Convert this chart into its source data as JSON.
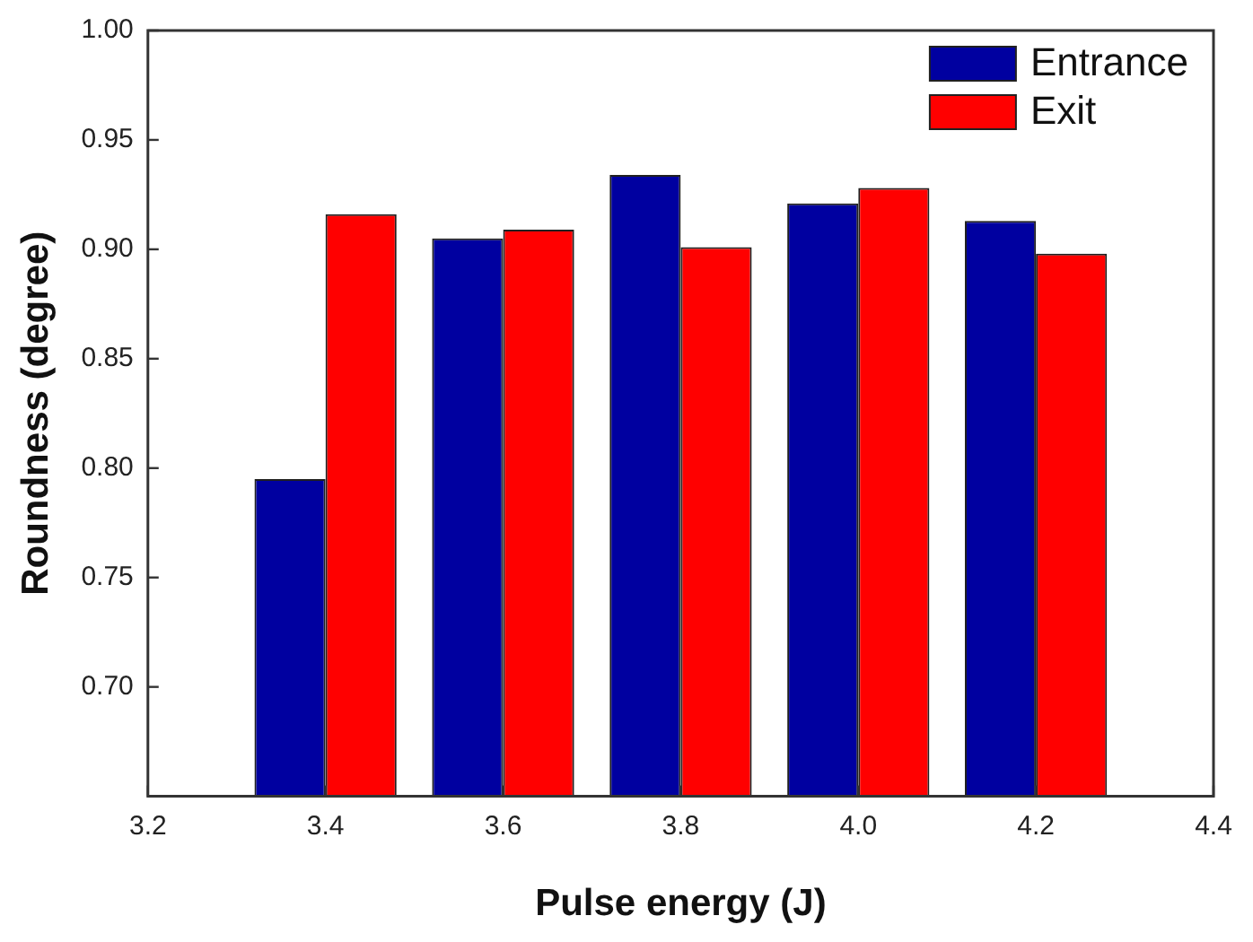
{
  "chart_data": {
    "type": "bar",
    "xlabel": "Pulse energy (J)",
    "ylabel": "Roundness (degree)",
    "x": [
      3.4,
      3.6,
      3.8,
      4.0,
      4.2
    ],
    "series": [
      {
        "name": "Entrance",
        "color": "#0000a0",
        "values": [
          0.795,
          0.905,
          0.934,
          0.921,
          0.913
        ]
      },
      {
        "name": "Exit",
        "color": "#ff0000",
        "values": [
          0.916,
          0.909,
          0.901,
          0.928,
          0.898
        ]
      }
    ],
    "xlim": [
      3.2,
      4.4
    ],
    "xticks": [
      3.2,
      3.4,
      3.6,
      3.8,
      {
        "value": 4,
        "label": "4.0"
      },
      4.2,
      4.4
    ],
    "ylim": [
      0.65,
      1.0
    ],
    "yticks": [
      {
        "value": 0.7,
        "label": "0.70"
      },
      0.75,
      {
        "value": 0.8,
        "label": "0.80"
      },
      0.85,
      {
        "value": 0.9,
        "label": "0.90"
      },
      0.95,
      {
        "value": 1,
        "label": "1.00"
      }
    ],
    "grid": false,
    "legend": "top right"
  }
}
